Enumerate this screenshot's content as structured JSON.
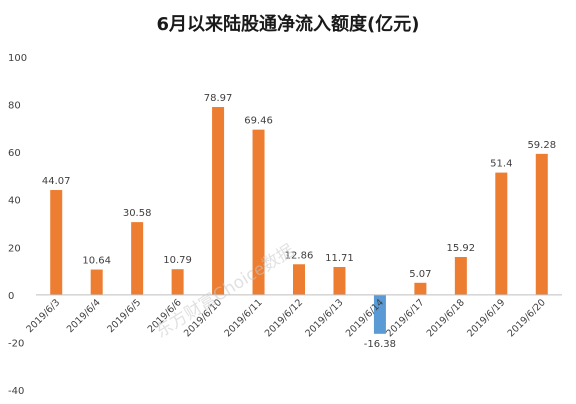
{
  "chart_data": {
    "type": "bar",
    "title": "6月以来陆股通净流入额度(亿元)",
    "categories": [
      "2019/6/3",
      "2019/6/4",
      "2019/6/5",
      "2019/6/6",
      "2019/6/10",
      "2019/6/11",
      "2019/6/12",
      "2019/6/13",
      "2019/6/14",
      "2019/6/17",
      "2019/6/18",
      "2019/6/19",
      "2019/6/20"
    ],
    "values": [
      44.07,
      10.64,
      30.58,
      10.79,
      78.97,
      69.46,
      12.86,
      11.71,
      -16.38,
      5.07,
      15.92,
      51.4,
      59.28
    ],
    "value_labels": [
      "44.07",
      "10.64",
      "30.58",
      "10.79",
      "78.97",
      "69.46",
      "12.86",
      "11.71",
      "-16.38",
      "5.07",
      "15.92",
      "51.4",
      "59.28"
    ],
    "ylim": [
      -40,
      100
    ],
    "yticks": [
      -40,
      -20,
      0,
      20,
      40,
      60,
      80,
      100
    ],
    "ytick_labels": [
      "-40",
      "-20",
      "0",
      "20",
      "40",
      "60",
      "80",
      "100"
    ],
    "xlabel": "",
    "ylabel": "",
    "grid": false,
    "colors": {
      "positive": "#ED7D31",
      "negative": "#5B9BD5",
      "axis": "#BFBFBF",
      "text": "#404040",
      "title": "#1a1a1a"
    }
  },
  "watermark": {
    "text": "东方财富Choice数据"
  }
}
